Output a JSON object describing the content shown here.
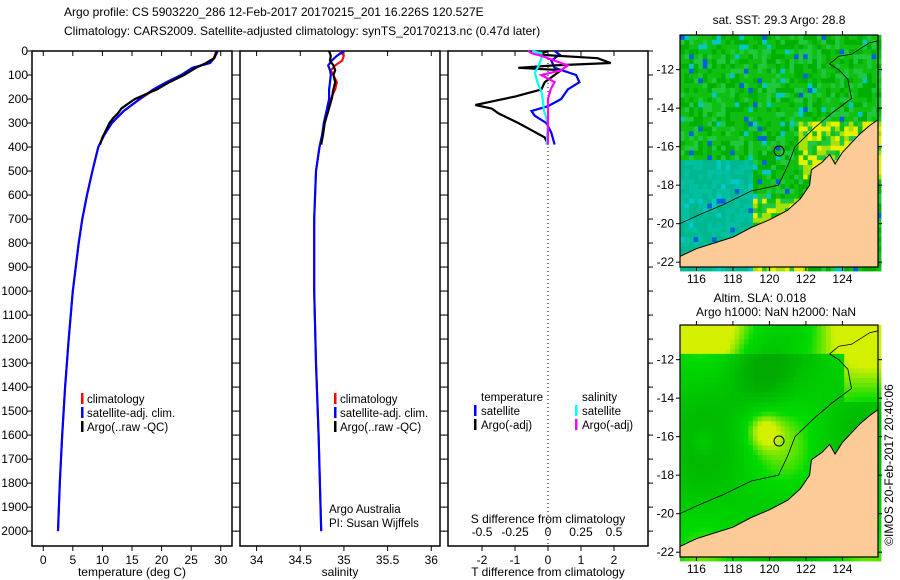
{
  "title": {
    "line1": "Argo profile: CS 5903220_286 12-Feb-2017 20170215_201 16.226S 120.527E",
    "line2": "Climatology: CARS2009. Satellite-adjusted climatology: synTS_20170213.nc (0.47d later)"
  },
  "credit": "©IMOS 20-Feb-2017 20:40:06",
  "chart_data": [
    {
      "type": "line",
      "id": "temperature",
      "xlabel": "temperature (deg C)",
      "ylabel": "depth",
      "xlim": [
        -1.9,
        31.9
      ],
      "ylim": [
        2062,
        0
      ],
      "xticks": [
        "0",
        "5",
        "10",
        "15",
        "20",
        "25",
        "30"
      ],
      "yticks": [
        "0",
        "100",
        "200",
        "300",
        "400",
        "500",
        "600",
        "700",
        "800",
        "900",
        "1000",
        "1100",
        "1200",
        "1300",
        "1400",
        "1500",
        "1600",
        "1700",
        "1800",
        "1900",
        "2000"
      ],
      "legend": [
        "climatology",
        "satellite-adj. clim.",
        "Argo(..raw -QC)"
      ],
      "series": [
        {
          "name": "climatology",
          "color": "#ff0000",
          "depth": [
            0,
            10,
            30,
            50,
            70,
            100,
            130,
            160,
            200,
            250,
            300,
            350,
            400,
            500,
            600,
            700,
            800,
            1000,
            1200,
            1400,
            1600,
            1800,
            2000
          ],
          "values": [
            29.2,
            29.1,
            28.8,
            28,
            25.5,
            23.5,
            21,
            18.8,
            16.4,
            13.6,
            11.6,
            10.3,
            9.3,
            8.3,
            7.4,
            6.6,
            6,
            5,
            4.3,
            3.7,
            3.2,
            2.8,
            2.5
          ]
        },
        {
          "name": "satellite-adj. clim.",
          "color": "#0000ff",
          "depth": [
            0,
            10,
            30,
            50,
            70,
            100,
            130,
            160,
            200,
            250,
            300,
            350,
            400,
            500,
            600,
            700,
            800,
            1000,
            1200,
            1400,
            1600,
            1800,
            2000
          ],
          "values": [
            29.5,
            29.3,
            28.9,
            28.2,
            25.2,
            23.3,
            20.8,
            18.6,
            16.3,
            13.6,
            11.6,
            10.3,
            9.3,
            8.3,
            7.4,
            6.6,
            6,
            5,
            4.3,
            3.7,
            3.2,
            2.8,
            2.5
          ]
        },
        {
          "name": "Argo(..raw -QC)",
          "color": "#000000",
          "depth": [
            0,
            10,
            30,
            50,
            70,
            100,
            130,
            160,
            200,
            220,
            240,
            260,
            280,
            300,
            330,
            360,
            390
          ],
          "values": [
            29.3,
            29.2,
            28.9,
            27.5,
            25.8,
            23.8,
            21.3,
            19.2,
            15.5,
            14.3,
            13.2,
            12.6,
            11.8,
            11.2,
            10.6,
            10.0,
            9.6
          ]
        }
      ]
    },
    {
      "type": "line",
      "id": "salinity",
      "xlabel": "salinity",
      "xlim": [
        33.81,
        36.1
      ],
      "ylim": [
        2062,
        0
      ],
      "xticks": [
        "34",
        "34.5",
        "35",
        "35.5",
        "36"
      ],
      "legend": [
        "climatology",
        "satellite-adj. clim.",
        "Argo(..raw -QC)"
      ],
      "annotation": [
        "Argo Australia",
        "PI: Susan Wijffels"
      ],
      "series": [
        {
          "name": "climatology",
          "color": "#ff0000",
          "depth": [
            0,
            20,
            40,
            60,
            80,
            100,
            130,
            160,
            200,
            250,
            300,
            350,
            400,
            500,
            700,
            1000,
            1300,
            1600,
            2000
          ],
          "values": [
            34.95,
            35.0,
            34.98,
            34.9,
            34.85,
            34.88,
            34.92,
            34.9,
            34.85,
            34.82,
            34.78,
            34.75,
            34.72,
            34.68,
            34.66,
            34.66,
            34.68,
            34.71,
            34.74
          ]
        },
        {
          "name": "satellite-adj. clim.",
          "color": "#0000ff",
          "depth": [
            0,
            20,
            40,
            60,
            80,
            100,
            130,
            160,
            200,
            250,
            300,
            350,
            400,
            500,
            700,
            1000,
            1300,
            1600,
            2000
          ],
          "values": [
            35.0,
            34.92,
            34.86,
            34.82,
            34.84,
            34.85,
            34.84,
            34.83,
            34.83,
            34.8,
            34.77,
            34.75,
            34.72,
            34.68,
            34.66,
            34.66,
            34.68,
            34.71,
            34.74
          ]
        },
        {
          "name": "Argo(..raw -QC)",
          "color": "#000000",
          "depth": [
            0,
            20,
            40,
            60,
            80,
            100,
            130,
            160,
            200,
            250,
            300,
            350,
            390
          ],
          "values": [
            34.83,
            34.85,
            34.84,
            34.88,
            34.9,
            34.88,
            34.9,
            34.88,
            34.86,
            34.82,
            34.78,
            34.76,
            34.74
          ]
        }
      ]
    },
    {
      "type": "line",
      "id": "differences",
      "xlabel": "T difference from climatology",
      "xlabel2": "S difference from climatology",
      "xlim": [
        -3.03,
        3.03
      ],
      "xlim2": [
        -0.758,
        0.758
      ],
      "ylim": [
        2062,
        0
      ],
      "xticks": [
        "-2",
        "-1",
        "0",
        "1",
        "2"
      ],
      "xticks2": [
        "-0.5",
        "-0.25",
        "0",
        "0.25",
        "0.5"
      ],
      "legend_headers": [
        "temperature",
        "salinity"
      ],
      "legend_t": [
        "satellite",
        "Argo(-adj)"
      ],
      "legend_s": [
        "satellite",
        "Argo(-adj)"
      ],
      "series": [
        {
          "name": "T satellite",
          "axis": "T",
          "color": "#0000ff",
          "depth": [
            0,
            15,
            40,
            70,
            100,
            130,
            160,
            200,
            230,
            250,
            270,
            300,
            340,
            390
          ],
          "values": [
            0.2,
            0.35,
            0.1,
            0.2,
            0.85,
            0.95,
            0.6,
            0.4,
            0.0,
            -0.5,
            -0.4,
            -0.05,
            0.1,
            0.2
          ]
        },
        {
          "name": "T Argo(-adj)",
          "axis": "T",
          "color": "#000000",
          "depth": [
            0,
            15,
            30,
            50,
            60,
            70,
            80,
            100,
            130,
            160,
            190,
            210,
            225,
            240,
            260,
            280,
            300,
            330,
            360,
            390
          ],
          "values": [
            0,
            -0.3,
            1.5,
            1.9,
            0.2,
            -0.9,
            0.4,
            0.2,
            -0.1,
            -0.2,
            -1.0,
            -1.7,
            -2.2,
            -1.7,
            -1.5,
            -1.2,
            -0.9,
            -0.5,
            -0.1,
            0
          ]
        },
        {
          "name": "S satellite",
          "axis": "S",
          "color": "#00ffff",
          "depth": [
            0,
            10,
            30,
            60,
            90,
            130,
            170,
            200,
            250,
            300,
            390
          ],
          "values": [
            -0.12,
            -0.05,
            -0.05,
            -0.07,
            -0.1,
            -0.08,
            -0.05,
            -0.04,
            -0.03,
            0.0,
            -0.01
          ]
        },
        {
          "name": "S Argo(-adj)",
          "axis": "S",
          "color": "#ff00ff",
          "depth": [
            0,
            10,
            20,
            40,
            60,
            80,
            100,
            130,
            160,
            200,
            250,
            300,
            390
          ],
          "values": [
            -0.15,
            -0.12,
            -0.05,
            0.05,
            0.15,
            0.1,
            -0.05,
            0.05,
            0.02,
            0.0,
            0.0,
            0.0,
            0.0
          ]
        }
      ]
    }
  ],
  "maps": [
    {
      "id": "sst",
      "title": [
        "sat. SST: 29.3 Argo: 28.8"
      ],
      "lonlim": [
        115.1,
        125.95
      ],
      "latlim": [
        -22.25,
        -10.2
      ],
      "xticks": [
        "116",
        "118",
        "120",
        "122",
        "124"
      ],
      "yticks": [
        "-12",
        "-14",
        "-16",
        "-18",
        "-20",
        "-22"
      ],
      "argo": [
        120.527,
        -16.226
      ]
    },
    {
      "id": "sla",
      "title": [
        "Altim. SLA: 0.018",
        "Argo h1000: NaN h2000: NaN"
      ],
      "lonlim": [
        115.1,
        125.95
      ],
      "latlim": [
        -22.25,
        -10.2
      ],
      "xticks": [
        "116",
        "118",
        "120",
        "122",
        "124"
      ],
      "yticks": [
        "-12",
        "-14",
        "-16",
        "-18",
        "-20",
        "-22"
      ],
      "argo": [
        120.527,
        -16.226
      ]
    }
  ],
  "colors": {
    "land": "#fdcb98",
    "ocean": "#00c000"
  }
}
